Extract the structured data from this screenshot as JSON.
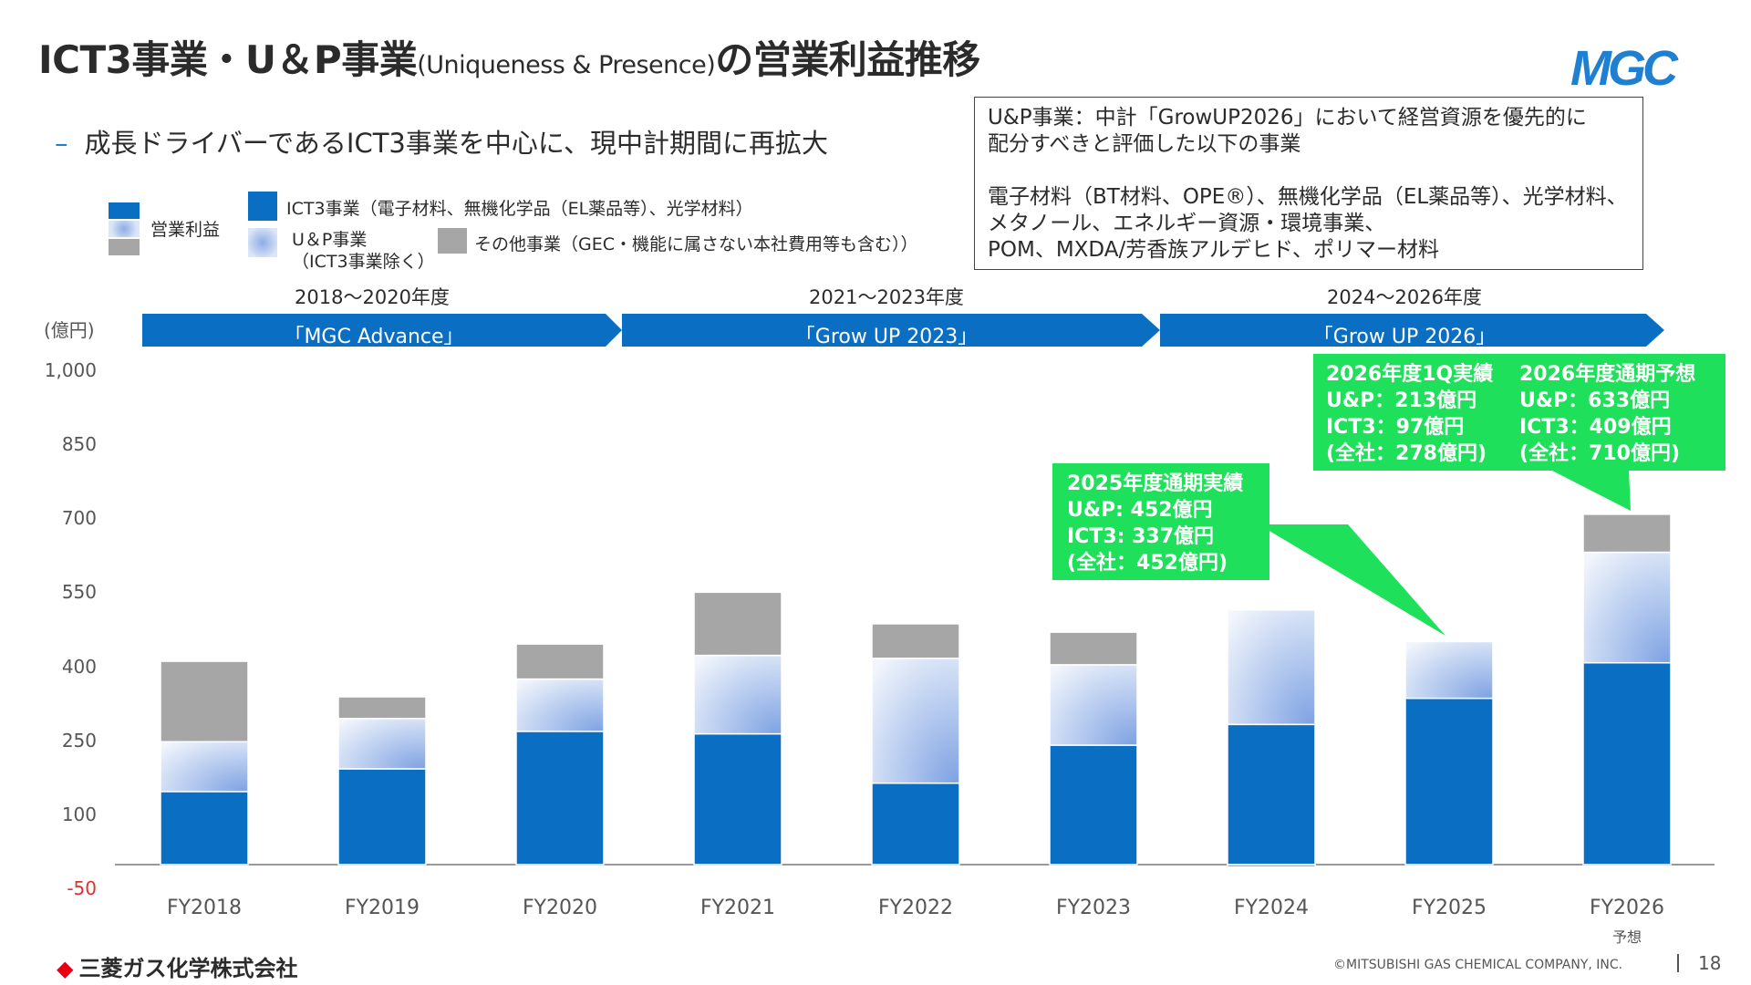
{
  "title": {
    "main_a": "ICT3事業・U＆P事業",
    "main_small": "(Uniqueness & Presence)",
    "main_b": "の営業利益推移"
  },
  "logo": "MGC",
  "bullet": "成長ドライバーであるICT3事業を中心に、現中計期間に再拡大",
  "legend": {
    "operating_profit": "営業利益",
    "ict3": "ICT3事業（電子材料、無機化学品（EL薬品等）、光学材料）",
    "up_line1": "U＆P事業",
    "up_line2": "（ICT3事業除く）",
    "other": "その他事業（GEC・機能に属さない本社費用等も含む））"
  },
  "info_box": {
    "line1": "U&P事業：中計「GrowUP2026」において経営資源を優先的に",
    "line2": "配分すべきと評価した以下の事業",
    "line3": "電子材料（BT材料、OPE®）、無機化学品（EL薬品等）、光学材料、",
    "line4": "メタノール、エネルギー資源・環境事業、",
    "line5": "POM、MXDA/芳香族アルデヒド、ポリマー材料"
  },
  "periods": [
    {
      "years": "2018～2020年度",
      "plan": "「MGC Advance」"
    },
    {
      "years": "2021～2023年度",
      "plan": "「Grow UP 2023」"
    },
    {
      "years": "2024～2026年度",
      "plan": "「Grow UP 2026」"
    }
  ],
  "callouts": {
    "fy2025": {
      "l1": "2025年度通期実績",
      "l2": "U&P: 452億円",
      "l3": "ICT3: 337億円",
      "l4": "(全社：452億円)"
    },
    "fy2026_1q": {
      "l1": "2026年度1Q実績",
      "l2": "U&P：213億円",
      "l3": "ICT3：97億円",
      "l4": "(全社：278億円)"
    },
    "fy2026_fc": {
      "l1": "2026年度通期予想",
      "l2": "U&P：633億円",
      "l3": "ICT3：409億円",
      "l4": "(全社：710億円)"
    }
  },
  "colors": {
    "ict3": "#0a6fc2",
    "up_light": "#dbe6f7",
    "up_dark": "#8eace6",
    "other": "#a6a6a6",
    "callout": "#1ee05a",
    "arrow": "#0a6fc2"
  },
  "chart_data": {
    "type": "bar",
    "stacked": true,
    "unit_label": "(億円)",
    "y_ticks": [
      "1,000",
      "850",
      "700",
      "550",
      "400",
      "250",
      "100",
      "-50"
    ],
    "ylim": [
      -50,
      1000
    ],
    "categories": [
      "FY2018",
      "FY2019",
      "FY2020",
      "FY2021",
      "FY2022",
      "FY2023",
      "FY2024",
      "FY2025",
      "FY2026"
    ],
    "category_note": {
      "FY2026": "予想"
    },
    "series": [
      {
        "name": "ICT3事業（電子材料、無機化学品（EL薬品等）、光学材料）",
        "key": "ict3",
        "values": [
          148,
          194,
          270,
          265,
          165,
          242,
          284,
          337,
          409
        ]
      },
      {
        "name": "U＆P事業（ICT3事業除く）",
        "key": "up",
        "values": [
          101,
          102,
          106,
          159,
          253,
          163,
          232,
          115,
          224
        ]
      },
      {
        "name": "その他事業（GEC・機能に属さない本社費用等も含む））",
        "key": "other",
        "values": [
          163,
          44,
          71,
          128,
          70,
          66,
          -5,
          0,
          77
        ]
      }
    ]
  },
  "footer": {
    "company": "三菱ガス化学株式会社",
    "copyright": "©MITSUBISHI GAS CHEMICAL COMPANY, INC.",
    "page": "18"
  }
}
